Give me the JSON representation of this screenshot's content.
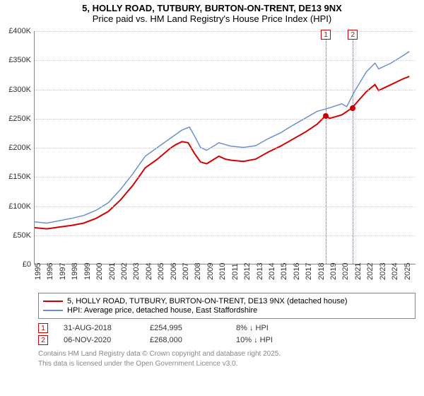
{
  "title_main": "5, HOLLY ROAD, TUTBURY, BURTON-ON-TRENT, DE13 9NX",
  "title_sub": "Price paid vs. HM Land Registry's House Price Index (HPI)",
  "chart": {
    "type": "line",
    "ylim": [
      0,
      400000
    ],
    "ytick_step": 50000,
    "ytick_labels": [
      "£0",
      "£50K",
      "£100K",
      "£150K",
      "£200K",
      "£250K",
      "£300K",
      "£350K",
      "£400K"
    ],
    "xlim": [
      1995,
      2026
    ],
    "xticks": [
      1995,
      1996,
      1997,
      1998,
      1999,
      2000,
      2001,
      2002,
      2003,
      2004,
      2005,
      2006,
      2007,
      2008,
      2009,
      2010,
      2011,
      2012,
      2013,
      2014,
      2015,
      2016,
      2017,
      2018,
      2019,
      2020,
      2021,
      2022,
      2023,
      2024,
      2025
    ],
    "background_color": "#ffffff",
    "grid_color": "#cccccc",
    "series": [
      {
        "name": "hpi",
        "color": "#6a8fd0",
        "width": 1.5,
        "data": [
          [
            1995,
            72000
          ],
          [
            1996,
            70000
          ],
          [
            1997,
            74000
          ],
          [
            1998,
            78000
          ],
          [
            1999,
            83000
          ],
          [
            2000,
            92000
          ],
          [
            2001,
            105000
          ],
          [
            2002,
            128000
          ],
          [
            2003,
            155000
          ],
          [
            2004,
            185000
          ],
          [
            2005,
            200000
          ],
          [
            2006,
            215000
          ],
          [
            2007,
            230000
          ],
          [
            2007.6,
            235000
          ],
          [
            2008,
            220000
          ],
          [
            2008.5,
            200000
          ],
          [
            2009,
            195000
          ],
          [
            2010,
            208000
          ],
          [
            2011,
            202000
          ],
          [
            2012,
            200000
          ],
          [
            2013,
            203000
          ],
          [
            2014,
            215000
          ],
          [
            2015,
            225000
          ],
          [
            2016,
            238000
          ],
          [
            2017,
            250000
          ],
          [
            2018,
            262000
          ],
          [
            2019,
            268000
          ],
          [
            2020,
            275000
          ],
          [
            2020.4,
            270000
          ],
          [
            2021,
            295000
          ],
          [
            2022,
            330000
          ],
          [
            2022.7,
            345000
          ],
          [
            2023,
            335000
          ],
          [
            2024,
            345000
          ],
          [
            2025,
            358000
          ],
          [
            2025.5,
            365000
          ]
        ]
      },
      {
        "name": "price_paid",
        "color": "#d40000",
        "width": 2,
        "data": [
          [
            1995,
            62000
          ],
          [
            1996,
            60000
          ],
          [
            1997,
            63000
          ],
          [
            1998,
            66000
          ],
          [
            1999,
            70000
          ],
          [
            2000,
            78000
          ],
          [
            2001,
            90000
          ],
          [
            2002,
            110000
          ],
          [
            2003,
            135000
          ],
          [
            2004,
            165000
          ],
          [
            2005,
            180000
          ],
          [
            2006,
            198000
          ],
          [
            2006.5,
            205000
          ],
          [
            2007,
            210000
          ],
          [
            2007.5,
            208000
          ],
          [
            2008,
            190000
          ],
          [
            2008.5,
            175000
          ],
          [
            2009,
            172000
          ],
          [
            2010,
            185000
          ],
          [
            2010.5,
            180000
          ],
          [
            2011,
            178000
          ],
          [
            2012,
            176000
          ],
          [
            2013,
            180000
          ],
          [
            2014,
            192000
          ],
          [
            2015,
            202000
          ],
          [
            2016,
            214000
          ],
          [
            2017,
            226000
          ],
          [
            2018,
            240000
          ],
          [
            2018.7,
            254995
          ],
          [
            2019,
            250000
          ],
          [
            2020,
            256000
          ],
          [
            2020.85,
            268000
          ],
          [
            2021,
            272000
          ],
          [
            2022,
            296000
          ],
          [
            2022.7,
            308000
          ],
          [
            2023,
            298000
          ],
          [
            2024,
            308000
          ],
          [
            2025,
            318000
          ],
          [
            2025.5,
            322000
          ]
        ]
      }
    ],
    "markers": [
      {
        "id": "1",
        "x": 2018.66,
        "y": 254995,
        "band_end": null
      },
      {
        "id": "2",
        "x": 2020.85,
        "y": 268000,
        "band_end": 2021.15
      }
    ]
  },
  "legend": [
    {
      "color": "#d40000",
      "label": "5, HOLLY ROAD, TUTBURY, BURTON-ON-TRENT, DE13 9NX (detached house)"
    },
    {
      "color": "#6a8fd0",
      "label": "HPI: Average price, detached house, East Staffordshire"
    }
  ],
  "sales": [
    {
      "id": "1",
      "date": "31-AUG-2018",
      "price": "£254,995",
      "delta": "8% ↓ HPI"
    },
    {
      "id": "2",
      "date": "06-NOV-2020",
      "price": "£268,000",
      "delta": "10% ↓ HPI"
    }
  ],
  "footer_l1": "Contains HM Land Registry data © Crown copyright and database right 2025.",
  "footer_l2": "This data is licensed under the Open Government Licence v3.0."
}
